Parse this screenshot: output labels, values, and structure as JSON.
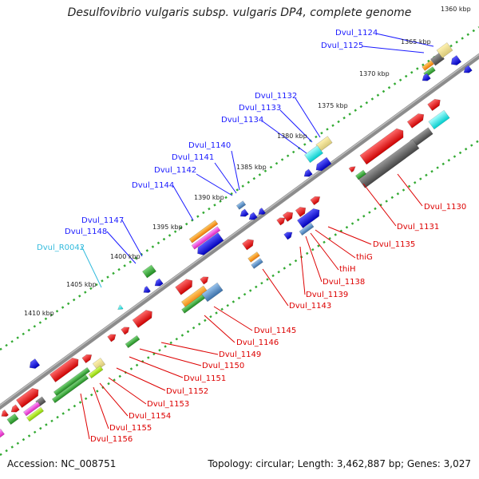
{
  "title": "Desulfovibrio vulgaris subsp. vulgaris DP4, complete genome",
  "footer": {
    "accession": "Accession: NC_008751",
    "summary": "Topology: circular; Length: 3,462,887 bp; Genes: 3,027"
  },
  "colors": {
    "backbone": "#888888",
    "tick_outer": "#33aa33",
    "tick_inner": "#33aa33",
    "label_blue": "#1a1aff",
    "label_red": "#dd0000",
    "label_cyan": "#33bbdd",
    "gene_red": "#ee1111",
    "gene_blue": "#1a1aee",
    "gene_green": "#33aa33",
    "gene_grey": "#666666"
  },
  "scale_labels": [
    "1360 kbp",
    "1365 kbp",
    "1370 kbp",
    "1375 kbp",
    "1380 kbp",
    "1385 kbp",
    "1390 kbp",
    "1395 kbp",
    "1400 kbp",
    "1405 kbp",
    "1410 kbp"
  ],
  "outer_labels": [
    {
      "text": "Dvul_1124",
      "color": "blue"
    },
    {
      "text": "Dvul_1125",
      "color": "blue"
    },
    {
      "text": "Dvul_1132",
      "color": "blue"
    },
    {
      "text": "Dvul_1133",
      "color": "blue"
    },
    {
      "text": "Dvul_1134",
      "color": "blue"
    },
    {
      "text": "Dvul_1140",
      "color": "blue"
    },
    {
      "text": "Dvul_1141",
      "color": "blue"
    },
    {
      "text": "Dvul_1142",
      "color": "blue"
    },
    {
      "text": "Dvul_1144",
      "color": "blue"
    },
    {
      "text": "Dvul_1147",
      "color": "blue"
    },
    {
      "text": "Dvul_1148",
      "color": "blue"
    },
    {
      "text": "Dvul_R0042",
      "color": "cyan"
    }
  ],
  "inner_labels": [
    {
      "text": "Dvul_1130",
      "color": "red"
    },
    {
      "text": "Dvul_1131",
      "color": "red"
    },
    {
      "text": "Dvul_1135",
      "color": "red"
    },
    {
      "text": "thiG",
      "color": "red"
    },
    {
      "text": "thiH",
      "color": "red"
    },
    {
      "text": "Dvul_1138",
      "color": "red"
    },
    {
      "text": "Dvul_1139",
      "color": "red"
    },
    {
      "text": "Dvul_1143",
      "color": "red"
    },
    {
      "text": "Dvul_1145",
      "color": "red"
    },
    {
      "text": "Dvul_1146",
      "color": "red"
    },
    {
      "text": "Dvul_1149",
      "color": "red"
    },
    {
      "text": "Dvul_1150",
      "color": "red"
    },
    {
      "text": "Dvul_1151",
      "color": "red"
    },
    {
      "text": "Dvul_1152",
      "color": "red"
    },
    {
      "text": "Dvul_1153",
      "color": "red"
    },
    {
      "text": "Dvul_1154",
      "color": "red"
    },
    {
      "text": "Dvul_1155",
      "color": "red"
    },
    {
      "text": "Dvul_1156",
      "color": "red"
    }
  ]
}
